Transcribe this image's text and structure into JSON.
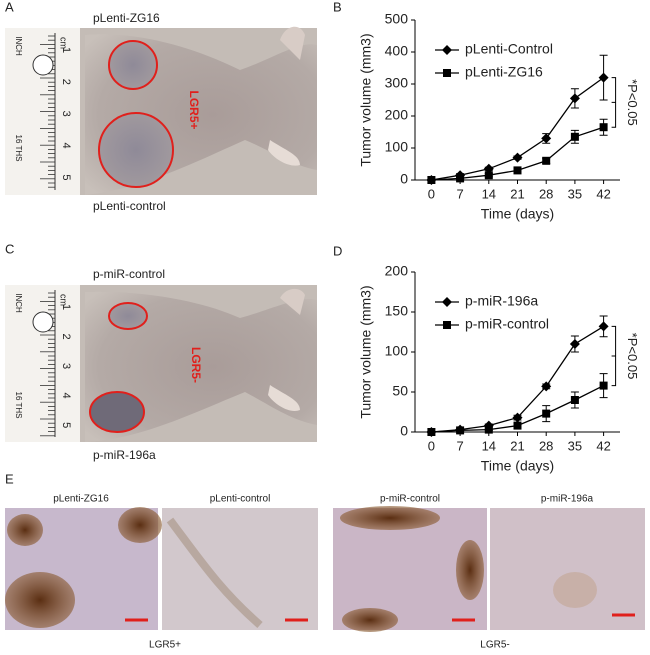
{
  "panel_labels": [
    "A",
    "B",
    "C",
    "D",
    "E"
  ],
  "photo_a": {
    "top_label": "pLenti-ZG16",
    "bottom_label": "pLenti-control",
    "marker": "LGR5+"
  },
  "photo_c": {
    "top_label": "p-miR-control",
    "bottom_label": "p-miR-196a",
    "marker": "LGR5-"
  },
  "ruler": {
    "unit_inch": "INCH",
    "unit_cm": "cm",
    "unit_16ths": "16 THS",
    "numbers": [
      "1",
      "2",
      "3",
      "4",
      "5"
    ]
  },
  "histology": {
    "images": [
      "pLenti-ZG16",
      "pLenti-control",
      "p-miR-control",
      "p-miR-196a"
    ],
    "groups": [
      "LGR5+",
      "LGR5-"
    ]
  },
  "chart_data": [
    {
      "type": "line",
      "x_label": "Time (days)",
      "y_label": "Tumor volume (mm3)",
      "annotation": "*P<0.05",
      "legend": "upper left",
      "x": [
        0,
        7,
        14,
        21,
        28,
        35,
        42
      ],
      "xlim": [
        -4,
        46
      ],
      "xticks": [
        0,
        7,
        14,
        21,
        28,
        35,
        42
      ],
      "ylim": [
        0,
        500
      ],
      "yticks": [
        0,
        100,
        200,
        300,
        400,
        500
      ],
      "series": [
        {
          "name": "pLenti-Control",
          "color": "#000000",
          "marker": "diamond",
          "values": [
            0,
            15,
            35,
            70,
            130,
            255,
            320
          ],
          "errors": [
            0,
            5,
            5,
            5,
            15,
            30,
            70
          ]
        },
        {
          "name": "pLenti-ZG16",
          "color": "#000000",
          "marker": "square",
          "values": [
            0,
            5,
            15,
            30,
            60,
            135,
            165
          ],
          "errors": [
            0,
            3,
            5,
            5,
            8,
            20,
            25
          ]
        }
      ]
    },
    {
      "type": "line",
      "x_label": "Time (days)",
      "y_label": "Tumor volume (mm3)",
      "annotation": "*P<0.05",
      "legend": "upper left",
      "x": [
        0,
        7,
        14,
        21,
        28,
        35,
        42
      ],
      "xlim": [
        -4,
        46
      ],
      "xticks": [
        0,
        7,
        14,
        21,
        28,
        35,
        42
      ],
      "ylim": [
        0,
        200
      ],
      "yticks": [
        0,
        50,
        100,
        150,
        200
      ],
      "series": [
        {
          "name": "p-miR-196a",
          "color": "#000000",
          "marker": "diamond",
          "values": [
            0,
            3,
            8,
            18,
            57,
            110,
            132
          ],
          "errors": [
            0,
            1,
            2,
            3,
            3,
            10,
            13
          ]
        },
        {
          "name": "p-miR-control",
          "color": "#000000",
          "marker": "square",
          "values": [
            0,
            2,
            3,
            8,
            23,
            40,
            58
          ],
          "errors": [
            0,
            1,
            1,
            2,
            10,
            10,
            15
          ]
        }
      ]
    }
  ]
}
